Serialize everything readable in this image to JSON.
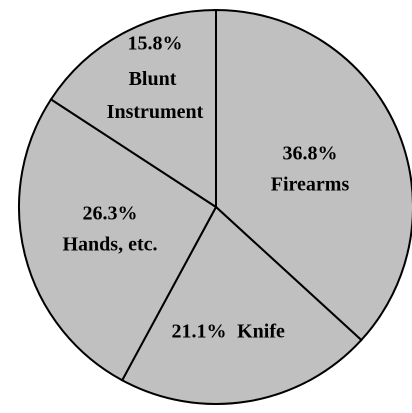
{
  "chart_data": {
    "type": "pie",
    "categories": [
      "Firearms",
      "Knife",
      "Hands, etc.",
      "Blunt Instrument"
    ],
    "values": [
      36.8,
      21.1,
      26.3,
      15.8
    ],
    "value_labels": [
      "36.8%",
      "21.1%",
      "26.3%",
      "15.8%"
    ],
    "color": "#c0c0c0"
  }
}
